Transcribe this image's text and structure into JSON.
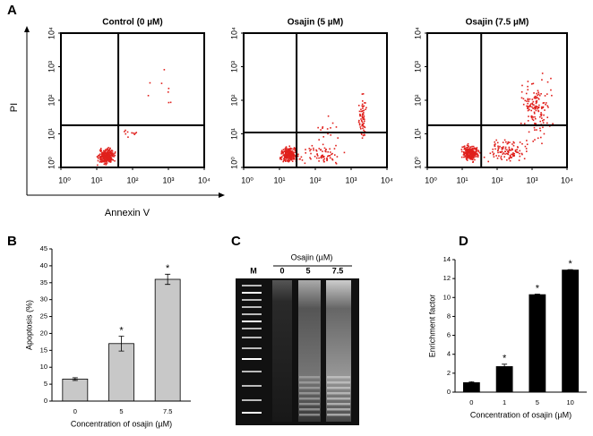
{
  "panel_labels": [
    "A",
    "B",
    "C",
    "D"
  ],
  "flow_cytometry": {
    "x_label": "Annexin V",
    "y_label": "PI",
    "log_scale": true,
    "lim": [
      1,
      10000
    ],
    "ticks": [
      {
        "value": 1,
        "label": "10⁰"
      },
      {
        "value": 10,
        "label": "10¹"
      },
      {
        "value": 100,
        "label": "10²"
      },
      {
        "value": 1000,
        "label": "10³"
      },
      {
        "value": 10000,
        "label": "10⁴"
      }
    ],
    "dot_color": "#e0201c",
    "panels": [
      {
        "title": "Control (0 µM)",
        "gate_x": 40,
        "gate_y": 18
      },
      {
        "title": "Osajin (5 µM)",
        "gate_x": 30,
        "gate_y": 11
      },
      {
        "title": "Osajin (7.5 µM)",
        "gate_x": 35,
        "gate_y": 18
      }
    ]
  },
  "gel": {
    "title": "Osajin (µM)",
    "lanes": [
      "M",
      "0",
      "5",
      "7.5"
    ]
  },
  "chart_data": [
    {
      "type": "bar",
      "categories": [
        "0",
        "5",
        "7.5"
      ],
      "values": [
        6.5,
        17,
        36
      ],
      "errors": [
        0.4,
        2.2,
        1.5
      ],
      "significance": [
        null,
        "*",
        "*"
      ],
      "color": "#c8c8c8",
      "ylim": [
        0,
        45
      ],
      "yticks": [
        0,
        5,
        10,
        15,
        20,
        25,
        30,
        35,
        40,
        45
      ],
      "x_label": "Concentration of osajin (µM)",
      "y_label": "Apoptosis (%)"
    },
    {
      "type": "bar",
      "categories": [
        "0",
        "1",
        "5",
        "10"
      ],
      "values": [
        1,
        2.7,
        10.3,
        12.9
      ],
      "errors": [
        0.1,
        0.25,
        0.05,
        0.05
      ],
      "significance": [
        null,
        "*",
        "*",
        "*"
      ],
      "color": "#000000",
      "ylim": [
        0,
        14
      ],
      "yticks": [
        0,
        2,
        4,
        6,
        8,
        10,
        12,
        14
      ],
      "x_label": "Concentration of osajin (µM)",
      "y_label": "Enrichment factor"
    }
  ]
}
